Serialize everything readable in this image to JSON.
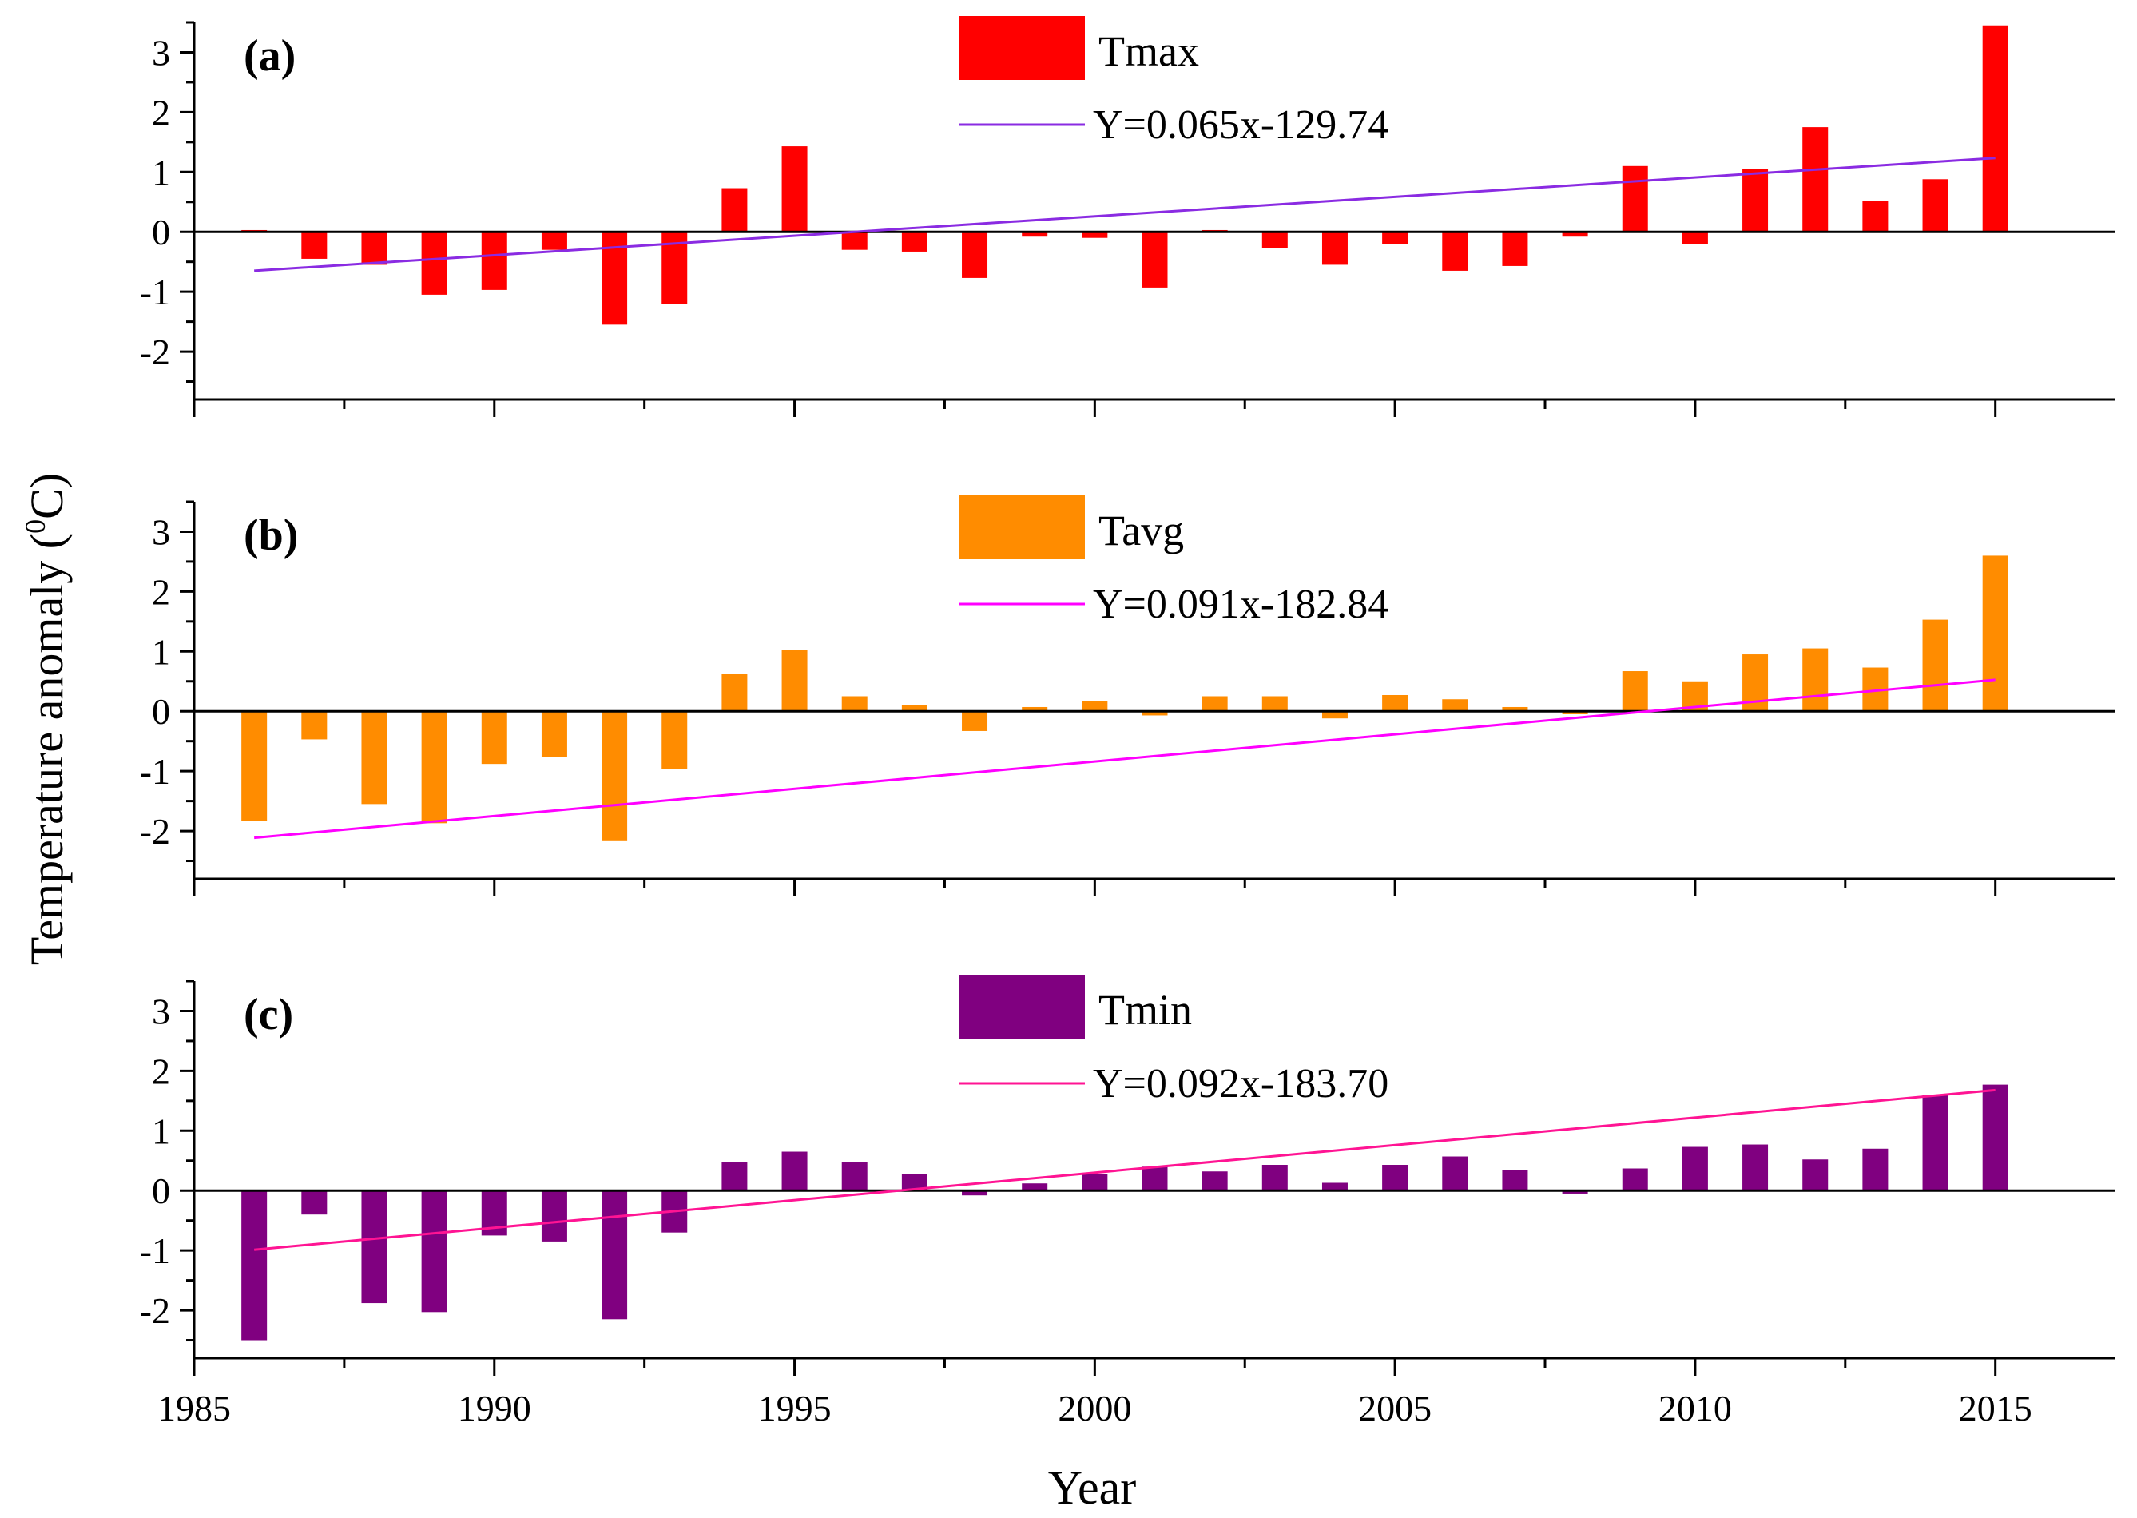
{
  "figure": {
    "ylabel_main": "Temperature anomaly (",
    "ylabel_sup": "0",
    "ylabel_unit": "C)",
    "xlabel": "Year"
  },
  "chart_data": [
    {
      "type": "bar",
      "panel_label": "(a)",
      "series_name": "Tmax",
      "color": "#ff0000",
      "trend_color": "#8a2be2",
      "trend_label": "Y=0.065x-129.74",
      "trend": {
        "slope": 0.065,
        "intercept": -129.74
      },
      "x": [
        1986,
        1987,
        1988,
        1989,
        1990,
        1991,
        1992,
        1993,
        1994,
        1995,
        1996,
        1997,
        1998,
        1999,
        2000,
        2001,
        2002,
        2003,
        2004,
        2005,
        2006,
        2007,
        2008,
        2009,
        2010,
        2011,
        2012,
        2013,
        2014,
        2015
      ],
      "values": [
        0.03,
        -0.45,
        -0.55,
        -1.05,
        -0.97,
        -0.3,
        -1.55,
        -1.2,
        0.73,
        1.43,
        -0.3,
        -0.33,
        -0.77,
        -0.08,
        -0.1,
        -0.93,
        0.03,
        -0.27,
        -0.55,
        -0.2,
        -0.65,
        -0.57,
        -0.08,
        1.1,
        -0.2,
        1.05,
        1.75,
        0.52,
        0.88,
        3.45
      ],
      "xlim": [
        1985,
        2017
      ],
      "ylim": [
        -2.8,
        3.5
      ],
      "yticks": [
        -2,
        -1,
        0,
        1,
        2,
        3
      ],
      "ytick_labels": [
        "-2",
        "-1",
        "0",
        "1",
        "2",
        "3"
      ]
    },
    {
      "type": "bar",
      "panel_label": "(b)",
      "series_name": "Tavg",
      "color": "#ff8c00",
      "trend_color": "#ff00ff",
      "trend_label": "Y=0.091x-182.84",
      "trend": {
        "slope": 0.091,
        "intercept": -182.84
      },
      "x": [
        1986,
        1987,
        1988,
        1989,
        1990,
        1991,
        1992,
        1993,
        1994,
        1995,
        1996,
        1997,
        1998,
        1999,
        2000,
        2001,
        2002,
        2003,
        2004,
        2005,
        2006,
        2007,
        2008,
        2009,
        2010,
        2011,
        2012,
        2013,
        2014,
        2015
      ],
      "values": [
        -1.83,
        -0.47,
        -1.55,
        -1.87,
        -0.88,
        -0.77,
        -2.17,
        -0.97,
        0.62,
        1.02,
        0.25,
        0.1,
        -0.33,
        0.07,
        0.17,
        -0.07,
        0.25,
        0.25,
        -0.12,
        0.27,
        0.2,
        0.07,
        -0.05,
        0.67,
        0.5,
        0.95,
        1.05,
        0.73,
        1.53,
        2.6
      ],
      "xlim": [
        1985,
        2017
      ],
      "ylim": [
        -2.8,
        3.5
      ],
      "yticks": [
        -2,
        -1,
        0,
        1,
        2,
        3
      ],
      "ytick_labels": [
        "-2",
        "-1",
        "0",
        "1",
        "2",
        "3"
      ]
    },
    {
      "type": "bar",
      "panel_label": "(c)",
      "series_name": "Tmin",
      "color": "#800080",
      "trend_color": "#ff1493",
      "trend_label": "Y=0.092x-183.70",
      "trend": {
        "slope": 0.092,
        "intercept": -183.7
      },
      "x": [
        1986,
        1987,
        1988,
        1989,
        1990,
        1991,
        1992,
        1993,
        1994,
        1995,
        1996,
        1997,
        1998,
        1999,
        2000,
        2001,
        2002,
        2003,
        2004,
        2005,
        2006,
        2007,
        2008,
        2009,
        2010,
        2011,
        2012,
        2013,
        2014,
        2015
      ],
      "values": [
        -2.5,
        -0.4,
        -1.88,
        -2.03,
        -0.75,
        -0.85,
        -2.15,
        -0.7,
        0.47,
        0.65,
        0.47,
        0.27,
        -0.08,
        0.12,
        0.27,
        0.4,
        0.32,
        0.43,
        0.13,
        0.43,
        0.57,
        0.35,
        -0.05,
        0.37,
        0.73,
        0.77,
        0.52,
        0.7,
        1.6,
        1.77
      ],
      "xlim": [
        1985,
        2017
      ],
      "ylim": [
        -2.8,
        3.5
      ],
      "yticks": [
        -2,
        -1,
        0,
        1,
        2,
        3
      ],
      "ytick_labels": [
        "-2",
        "-1",
        "0",
        "1",
        "2",
        "3"
      ]
    }
  ],
  "x_axis": {
    "ticks": [
      1985,
      1990,
      1995,
      2000,
      2005,
      2010,
      2015
    ],
    "tick_labels": [
      "1985",
      "1990",
      "1995",
      "2000",
      "2005",
      "2010",
      "2015"
    ],
    "minor_step": 2.5
  }
}
